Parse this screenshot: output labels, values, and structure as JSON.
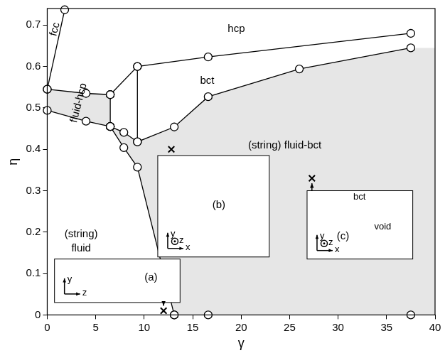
{
  "chart_data": {
    "type": "line",
    "xlabel": "γ",
    "ylabel": "η",
    "xlim": [
      0,
      40
    ],
    "ylim": [
      0,
      0.74
    ],
    "xticks": [
      0,
      5,
      10,
      15,
      20,
      25,
      30,
      35,
      40
    ],
    "yticks": [
      0,
      0.1,
      0.2,
      0.3,
      0.4,
      0.5,
      0.6,
      0.7
    ],
    "grid": false,
    "series": [
      {
        "color": "#000000",
        "marker": "circle",
        "line_style": "solid",
        "x": [
          0,
          1.8
        ],
        "values": [
          0.545,
          0.737
        ]
      },
      {
        "color": "#000000",
        "marker": "circle",
        "line_style": "solid",
        "x": [
          0,
          4,
          6.5
        ],
        "values": [
          0.545,
          0.535,
          0.532
        ]
      },
      {
        "color": "#000000",
        "marker": "circle",
        "line_style": "solid",
        "x": [
          6.5,
          9.3,
          16.6,
          37.5
        ],
        "values": [
          0.532,
          0.6,
          0.623,
          0.68
        ]
      },
      {
        "color": "#000000",
        "marker": "circle",
        "line_style": "solid",
        "x": [
          0,
          4,
          6.5
        ],
        "values": [
          0.494,
          0.468,
          0.455
        ]
      },
      {
        "color": "#000000",
        "marker": "circle",
        "line_style": "solid",
        "x": [
          6.5,
          6.5
        ],
        "values": [
          0.532,
          0.455
        ]
      },
      {
        "color": "#000000",
        "marker": "circle",
        "line_style": "solid",
        "x": [
          6.5,
          7.9,
          9.3,
          13.1,
          16.6,
          26,
          37.5
        ],
        "values": [
          0.455,
          0.441,
          0.418,
          0.454,
          0.527,
          0.594,
          0.645
        ]
      },
      {
        "color": "#000000",
        "marker": "circle",
        "line_style": "solid",
        "x": [
          9.3,
          9.3
        ],
        "values": [
          0.418,
          0.6
        ]
      },
      {
        "color": "#000000",
        "marker": "circle",
        "line_style": "solid",
        "x": [
          6.5,
          7.9,
          9.3,
          13.1
        ],
        "values": [
          0.455,
          0.404,
          0.357,
          0
        ]
      },
      {
        "color": "#000000",
        "marker": "circle",
        "line_style": "none",
        "x": [
          13.1,
          16.6,
          37.5
        ],
        "values": [
          0,
          0,
          0
        ]
      },
      {
        "color": "#000000",
        "marker": "cross",
        "line_style": "none",
        "x": [
          12,
          12.8,
          27.3
        ],
        "values": [
          0.01,
          0.4,
          0.33
        ]
      }
    ],
    "shaded_regions": [
      {
        "color": "#e6e6e6",
        "x": [
          0,
          4,
          6.5,
          6.5,
          4,
          0
        ],
        "values": [
          0.545,
          0.535,
          0.532,
          0.455,
          0.468,
          0.494
        ]
      },
      {
        "color": "#e6e6e6",
        "x": [
          6.5,
          7.9,
          9.3,
          13.1,
          40,
          40,
          37.5,
          26,
          16.6,
          13.1,
          9.3,
          7.9
        ],
        "values": [
          0.455,
          0.404,
          0.357,
          0,
          0,
          0.645,
          0.645,
          0.594,
          0.527,
          0.454,
          0.418,
          0.441
        ]
      }
    ],
    "annotations": [
      {
        "text": "fcc",
        "x": 0.8,
        "y": 0.69
      },
      {
        "text": "hcp",
        "x": 19.5,
        "y": 0.69
      },
      {
        "text": "bct",
        "x": 16.5,
        "y": 0.565
      },
      {
        "text": "fluid-hcp",
        "x": 3.25,
        "y": 0.512
      },
      {
        "text": "(string)",
        "x": 3.5,
        "y": 0.195
      },
      {
        "text": "fluid",
        "x": 3.5,
        "y": 0.16
      },
      {
        "text": "(string) fluid-bct",
        "x": 24.5,
        "y": 0.41
      }
    ],
    "insets": [
      {
        "label": "(a)",
        "label_x": 10.7,
        "label_y": 0.09,
        "xlim": [
          0.75,
          13.7
        ],
        "ylim": [
          0.03,
          0.135
        ],
        "axes": {
          "up": "y",
          "right": "z"
        },
        "texts": []
      },
      {
        "label": "(b)",
        "label_x": 17.7,
        "label_y": 0.265,
        "xlim": [
          11.4,
          22.9
        ],
        "ylim": [
          0.14,
          0.385
        ],
        "axes": {
          "up": "y",
          "right": "x",
          "out": "z"
        },
        "texts": []
      },
      {
        "label": "(c)",
        "label_x": 30.5,
        "label_y": 0.19,
        "xlim": [
          26.8,
          37.7
        ],
        "ylim": [
          0.135,
          0.3
        ],
        "axes": {
          "up": "y",
          "right": "x",
          "out": "z"
        },
        "texts": [
          {
            "text": "bct",
            "x": 32.2,
            "y": 0.284
          },
          {
            "text": "void",
            "x": 34.6,
            "y": 0.213
          }
        ]
      }
    ]
  }
}
